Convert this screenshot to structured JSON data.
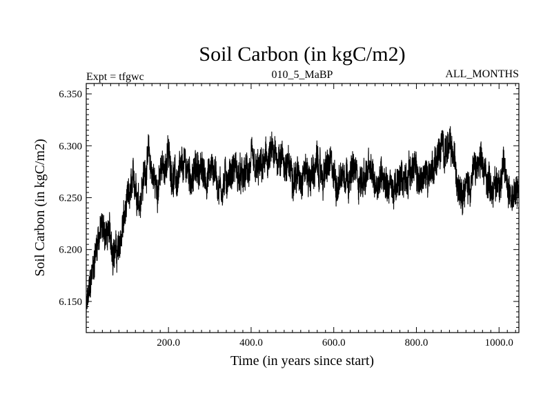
{
  "chart_data": {
    "type": "line",
    "title": "Soil Carbon (in kgC/m2)",
    "subtitle_left": "Expt = tfgwc",
    "subtitle_center": "010_5_MaBP",
    "subtitle_right": "ALL_MONTHS",
    "xlabel": "Time (in years since start)",
    "ylabel": "Soil Carbon (in kgC/m2)",
    "xlim": [
      1,
      1048
    ],
    "ylim": [
      6.12,
      6.36
    ],
    "xticks": [
      200,
      400,
      600,
      800,
      1000
    ],
    "xtick_labels": [
      "200.0",
      "400.0",
      "600.0",
      "800.0",
      "1000.0"
    ],
    "yticks": [
      6.15,
      6.2,
      6.25,
      6.3,
      6.35
    ],
    "ytick_labels": [
      "6.150",
      "6.200",
      "6.250",
      "6.300",
      "6.350"
    ],
    "series": [
      {
        "name": "Soil Carbon",
        "color": "#000000",
        "x": [
          1,
          10,
          20,
          30,
          40,
          50,
          60,
          70,
          80,
          90,
          100,
          110,
          120,
          130,
          140,
          150,
          160,
          170,
          180,
          190,
          200,
          210,
          220,
          230,
          240,
          250,
          260,
          270,
          280,
          290,
          300,
          310,
          320,
          330,
          340,
          350,
          360,
          370,
          380,
          390,
          400,
          410,
          420,
          430,
          440,
          450,
          460,
          470,
          480,
          490,
          500,
          510,
          520,
          530,
          540,
          550,
          560,
          570,
          580,
          590,
          600,
          610,
          620,
          630,
          640,
          650,
          660,
          670,
          680,
          690,
          700,
          710,
          720,
          730,
          740,
          750,
          760,
          770,
          780,
          790,
          800,
          810,
          820,
          830,
          840,
          850,
          860,
          870,
          880,
          890,
          900,
          910,
          920,
          930,
          940,
          950,
          960,
          970,
          980,
          990,
          1000,
          1010,
          1020,
          1030,
          1040,
          1048
        ],
        "values": [
          6.14,
          6.16,
          6.19,
          6.215,
          6.22,
          6.215,
          6.21,
          6.2,
          6.195,
          6.225,
          6.24,
          6.255,
          6.265,
          6.25,
          6.27,
          6.29,
          6.275,
          6.26,
          6.27,
          6.28,
          6.29,
          6.275,
          6.265,
          6.27,
          6.28,
          6.275,
          6.27,
          6.28,
          6.275,
          6.27,
          6.275,
          6.28,
          6.265,
          6.26,
          6.27,
          6.275,
          6.28,
          6.27,
          6.265,
          6.275,
          6.28,
          6.27,
          6.275,
          6.28,
          6.285,
          6.29,
          6.285,
          6.295,
          6.285,
          6.275,
          6.28,
          6.27,
          6.275,
          6.28,
          6.27,
          6.275,
          6.28,
          6.27,
          6.275,
          6.28,
          6.27,
          6.265,
          6.275,
          6.28,
          6.27,
          6.275,
          6.27,
          6.265,
          6.275,
          6.27,
          6.265,
          6.27,
          6.275,
          6.265,
          6.26,
          6.255,
          6.265,
          6.27,
          6.275,
          6.28,
          6.27,
          6.265,
          6.27,
          6.275,
          6.28,
          6.29,
          6.295,
          6.3,
          6.295,
          6.285,
          6.27,
          6.265,
          6.26,
          6.265,
          6.275,
          6.28,
          6.275,
          6.27,
          6.265,
          6.26,
          6.27,
          6.275,
          6.265,
          6.255,
          6.25,
          6.255
        ],
        "noise_amplitude": 0.025
      }
    ]
  }
}
